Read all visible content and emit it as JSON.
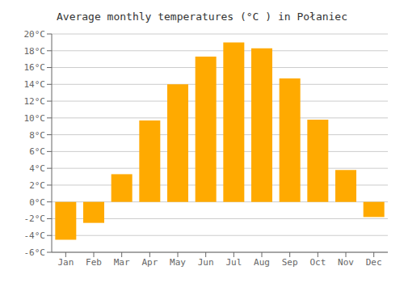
{
  "chart_data": {
    "type": "bar",
    "title": "Average monthly temperatures (°C ) in Połaniec",
    "categories": [
      "Jan",
      "Feb",
      "Mar",
      "Apr",
      "May",
      "Jun",
      "Jul",
      "Aug",
      "Sep",
      "Oct",
      "Nov",
      "Dec"
    ],
    "values": [
      -4.5,
      -2.5,
      3.3,
      9.7,
      14.0,
      17.3,
      19.0,
      18.3,
      14.7,
      9.8,
      3.8,
      -1.8
    ],
    "color": "#FFAA00",
    "ylim": [
      -6,
      20
    ],
    "yticks": [
      {
        "value": -6,
        "label": "-6°C"
      },
      {
        "value": -4,
        "label": "-4°C"
      },
      {
        "value": -2,
        "label": "-2°C"
      },
      {
        "value": 0,
        "label": "0°C"
      },
      {
        "value": 2,
        "label": "2°C"
      },
      {
        "value": 4,
        "label": "4°C"
      },
      {
        "value": 6,
        "label": "6°C"
      },
      {
        "value": 8,
        "label": "8°C"
      },
      {
        "value": 10,
        "label": "10°C"
      },
      {
        "value": 12,
        "label": "12°C"
      },
      {
        "value": 14,
        "label": "14°C"
      },
      {
        "value": 16,
        "label": "16°C"
      },
      {
        "value": 18,
        "label": "18°C"
      },
      {
        "value": 20,
        "label": "20°C"
      }
    ],
    "grid": true
  }
}
